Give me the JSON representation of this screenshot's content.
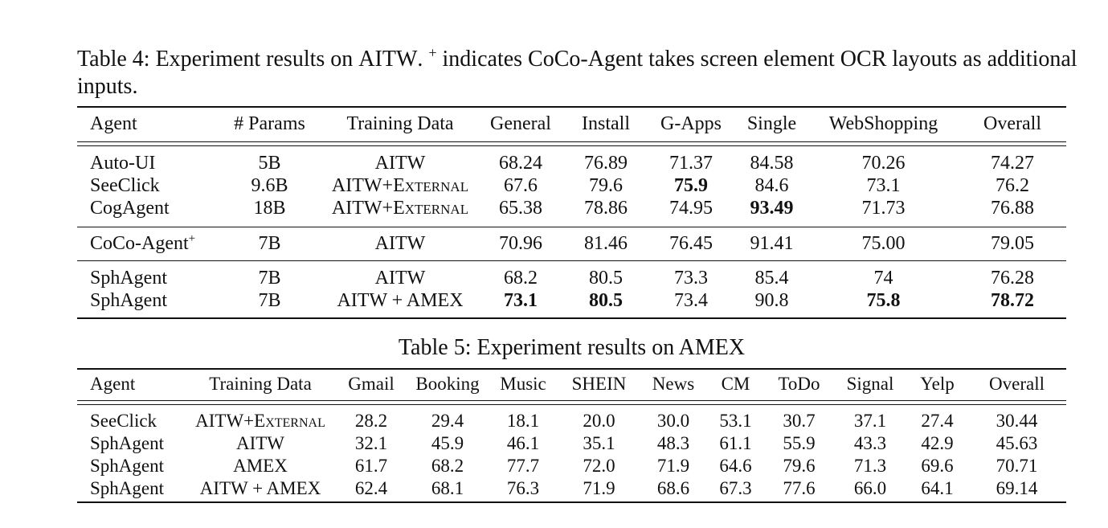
{
  "table4": {
    "caption_label": "Table 4:",
    "caption_text_a": "Experiment results on",
    "caption_dataset": "AITW",
    "caption_text_b": ".",
    "caption_sup": "+",
    "caption_text_c": "indicates CoCo-Agent takes screen element OCR layouts as additional inputs.",
    "headers": [
      "Agent",
      "# Params",
      "Training Data",
      "General",
      "Install",
      "G-Apps",
      "Single",
      "WebShopping",
      "Overall"
    ],
    "groups": [
      [
        {
          "agent": "Auto-UI",
          "params": "5B",
          "data": "AITW",
          "general": "68.24",
          "install": "76.89",
          "gapps": "71.37",
          "single": "84.58",
          "webshopping": "70.26",
          "overall": "74.27"
        },
        {
          "agent": "SeeClick",
          "params": "9.6B",
          "data": "AITW+External",
          "general": "67.6",
          "install": "79.6",
          "gapps": "75.9",
          "single": "84.6",
          "webshopping": "73.1",
          "overall": "76.2"
        },
        {
          "agent": "CogAgent",
          "params": "18B",
          "data": "AITW+External",
          "general": "65.38",
          "install": "78.86",
          "gapps": "74.95",
          "single": "93.49",
          "webshopping": "71.73",
          "overall": "76.88"
        }
      ],
      [
        {
          "agent": "CoCo-Agent",
          "agent_sup": "+",
          "params": "7B",
          "data": "AITW",
          "general": "70.96",
          "install": "81.46",
          "gapps": "76.45",
          "single": "91.41",
          "webshopping": "75.00",
          "overall": "79.05"
        }
      ],
      [
        {
          "agent": "SphAgent",
          "params": "7B",
          "data": "AITW",
          "general": "68.2",
          "install": "80.5",
          "gapps": "73.3",
          "single": "85.4",
          "webshopping": "74",
          "overall": "76.28"
        },
        {
          "agent": "SphAgent",
          "params": "7B",
          "data": "AITW + AMEX",
          "general": "73.1",
          "install": "80.5",
          "gapps": "73.4",
          "single": "90.8",
          "webshopping": "75.8",
          "overall": "78.72"
        }
      ]
    ]
  },
  "table5": {
    "caption": "Table 5: Experiment results on AMEX",
    "headers": [
      "Agent",
      "Training Data",
      "Gmail",
      "Booking",
      "Music",
      "SHEIN",
      "News",
      "CM",
      "ToDo",
      "Signal",
      "Yelp",
      "Overall"
    ],
    "rows": [
      {
        "agent": "SeeClick",
        "data": "AITW+External",
        "gmail": "28.2",
        "booking": "29.4",
        "music": "18.1",
        "shein": "20.0",
        "news": "30.0",
        "cm": "53.1",
        "todo": "30.7",
        "signal": "37.1",
        "yelp": "27.4",
        "overall": "30.44"
      },
      {
        "agent": "SphAgent",
        "data": "AITW",
        "gmail": "32.1",
        "booking": "45.9",
        "music": "46.1",
        "shein": "35.1",
        "news": "48.3",
        "cm": "61.1",
        "todo": "55.9",
        "signal": "43.3",
        "yelp": "42.9",
        "overall": "45.63"
      },
      {
        "agent": "SphAgent",
        "data": "AMEX",
        "gmail": "61.7",
        "booking": "68.2",
        "music": "77.7",
        "shein": "72.0",
        "news": "71.9",
        "cm": "64.6",
        "todo": "79.6",
        "signal": "71.3",
        "yelp": "69.6",
        "overall": "70.71"
      },
      {
        "agent": "SphAgent",
        "data": "AITW + AMEX",
        "gmail": "62.4",
        "booking": "68.1",
        "music": "76.3",
        "shein": "71.9",
        "news": "68.6",
        "cm": "67.3",
        "todo": "77.6",
        "signal": "66.0",
        "yelp": "64.1",
        "overall": "69.14"
      }
    ]
  }
}
